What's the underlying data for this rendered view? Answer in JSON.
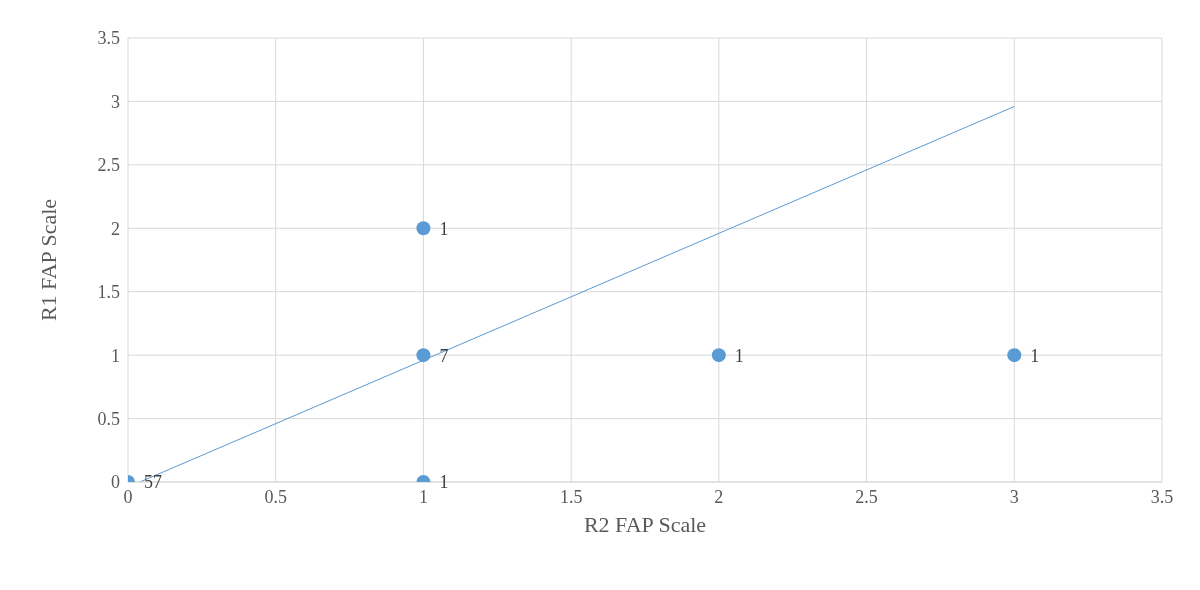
{
  "chart_data": {
    "type": "scatter",
    "xlabel": "R2 FAP Scale",
    "ylabel": "R1 FAP Scale",
    "xlim": [
      0,
      3.5
    ],
    "xticks": [
      0,
      0.5,
      1,
      1.5,
      2,
      2.5,
      3,
      3.5
    ],
    "ylim": [
      0,
      3.5
    ],
    "yticks": [
      0,
      0.5,
      1,
      1.5,
      2,
      2.5,
      3,
      3.5
    ],
    "grid": true,
    "marker": "circle",
    "series": [
      {
        "color": "#5b9bd5",
        "x": [
          0,
          1,
          1,
          2,
          3,
          1
        ],
        "values": [
          0,
          1,
          2,
          1,
          1,
          0
        ]
      },
      {
        "type": "line",
        "color": "#5b9bd5",
        "x": [
          0.04,
          3
        ],
        "values": [
          0,
          2.96
        ],
        "marker": "none",
        "line_style": "solid"
      }
    ],
    "annotations": [
      {
        "text": "57",
        "x": 0,
        "y": 0
      },
      {
        "text": "7",
        "x": 1,
        "y": 1
      },
      {
        "text": "1",
        "x": 1,
        "y": 2
      },
      {
        "text": "1",
        "x": 2,
        "y": 1
      },
      {
        "text": "1",
        "x": 3,
        "y": 1
      },
      {
        "text": "1",
        "x": 1,
        "y": 0
      }
    ]
  }
}
